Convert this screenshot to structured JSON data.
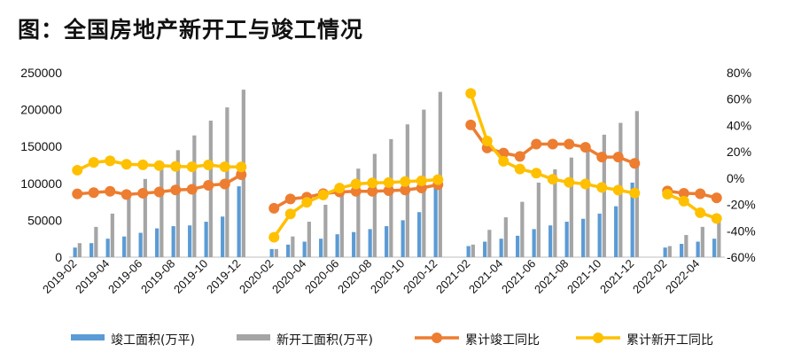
{
  "title": "图：全国房地产新开工与竣工情况",
  "chart_data": {
    "type": "bar+line",
    "x": [
      "2019-02",
      "2019-03",
      "2019-04",
      "2019-05",
      "2019-06",
      "2019-07",
      "2019-08",
      "2019-09",
      "2019-10",
      "2019-11",
      "2019-12",
      "2020-01",
      "2020-02",
      "2020-03",
      "2020-04",
      "2020-05",
      "2020-06",
      "2020-07",
      "2020-08",
      "2020-09",
      "2020-10",
      "2020-11",
      "2020-12",
      "2021-01",
      "2021-02",
      "2021-03",
      "2021-04",
      "2021-05",
      "2021-06",
      "2021-07",
      "2021-08",
      "2021-09",
      "2021-10",
      "2021-11",
      "2021-12",
      "2022-01",
      "2022-02",
      "2022-03",
      "2022-04",
      "2022-05"
    ],
    "x_tick_labels": [
      "2019-02",
      "2019-04",
      "2019-06",
      "2019-08",
      "2019-10",
      "2019-12",
      "2020-02",
      "2020-04",
      "2020-06",
      "2020-08",
      "2020-10",
      "2020-12",
      "2021-02",
      "2021-04",
      "2021-06",
      "2021-08",
      "2021-10",
      "2021-12",
      "2022-02",
      "2022-04"
    ],
    "y_left": {
      "min": 0,
      "max": 250000,
      "ticks": [
        "0",
        "50000",
        "100000",
        "150000",
        "200000",
        "250000"
      ]
    },
    "y_right": {
      "min": -60,
      "max": 80,
      "ticks": [
        "-60%",
        "-40%",
        "-20%",
        "0%",
        "20%",
        "40%",
        "60%",
        "80%"
      ]
    },
    "legend_position": "bottom",
    "colors": {
      "completed_bar": "#5B9BD5",
      "new_bar": "#A5A5A5",
      "completed_line": "#ED7D31",
      "new_line": "#FFC000"
    },
    "series": [
      {
        "name": "竣工面积(万平)",
        "kind": "bar",
        "axis": "left",
        "values": [
          13000,
          19000,
          25000,
          28000,
          33000,
          39000,
          42000,
          43000,
          48000,
          55000,
          96000,
          null,
          11000,
          17000,
          21000,
          25000,
          31000,
          34000,
          38000,
          42000,
          50000,
          61000,
          95000,
          null,
          15000,
          21000,
          25000,
          29000,
          38000,
          43000,
          48000,
          52000,
          59000,
          69000,
          101000,
          null,
          13000,
          18000,
          21000,
          25000
        ]
      },
      {
        "name": "新开工面积(万平)",
        "kind": "bar",
        "axis": "left",
        "values": [
          19000,
          41000,
          59000,
          82000,
          106000,
          120000,
          145000,
          165000,
          185000,
          203000,
          227000,
          null,
          11000,
          28000,
          48000,
          71000,
          98000,
          120000,
          140000,
          160000,
          180000,
          200000,
          224000,
          null,
          17000,
          37000,
          54000,
          75000,
          101000,
          119000,
          135000,
          153000,
          166000,
          182000,
          198000,
          null,
          15000,
          30000,
          41000,
          52000
        ]
      },
      {
        "name": "累计竣工同比",
        "kind": "line",
        "axis": "right",
        "values": [
          -12,
          -11,
          -10,
          -12.5,
          -11.5,
          -10.5,
          -9,
          -8.5,
          -5.5,
          -4.5,
          2.6,
          null,
          -22.9,
          -15.8,
          -14.5,
          -11.8,
          -10.5,
          -10,
          -10,
          -9.5,
          -9,
          -7.5,
          -5,
          null,
          40.4,
          22.9,
          19,
          16.5,
          25.8,
          25.8,
          25.8,
          23.4,
          16,
          16,
          11.2,
          null,
          -9.8,
          -11.5,
          -11.9,
          -15
        ]
      },
      {
        "name": "累计新开工同比",
        "kind": "line",
        "axis": "right",
        "values": [
          6,
          11.9,
          13.1,
          10.5,
          10.1,
          9.5,
          8.9,
          8.6,
          10,
          8.6,
          8.5,
          null,
          -44.9,
          -27.2,
          -18.4,
          -12.8,
          -7.6,
          -4.5,
          -3.6,
          -3.4,
          -2.6,
          -2,
          -1.2,
          null,
          64.3,
          28.2,
          12.8,
          6.9,
          3.8,
          -0.9,
          -3.2,
          -4.5,
          -7.1,
          -9.1,
          -11.4,
          null,
          -12.2,
          -17.5,
          -26.3,
          -30.6
        ]
      }
    ]
  }
}
